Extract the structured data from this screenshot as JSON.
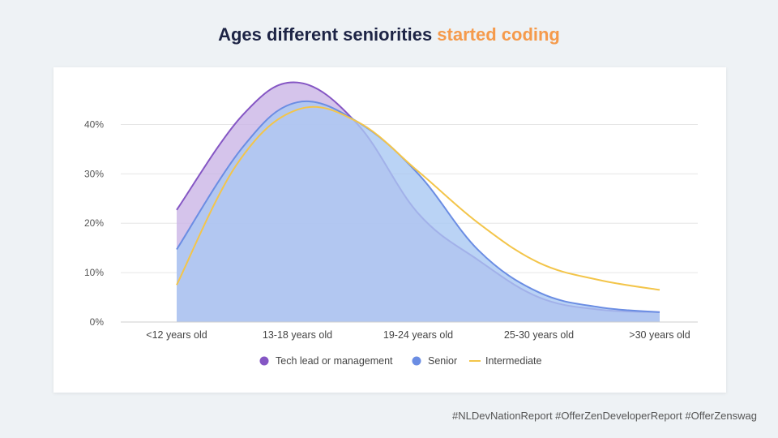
{
  "title": {
    "main": "Ages different seniorities ",
    "accent": "started coding"
  },
  "footer": "#NLDevNationReport #OfferZenDeveloperReport #OfferZenswag",
  "colors": {
    "background": "#eef2f5",
    "title": "#1d2445",
    "accent": "#f59a4b"
  },
  "chart_data": {
    "type": "area",
    "title": "",
    "xlabel": "",
    "ylabel": "",
    "categories": [
      "<12 years old",
      "13-18 years old",
      "19-24 years old",
      "25-30 years old",
      ">30 years old"
    ],
    "ylim": [
      0,
      45
    ],
    "yticks": [
      0,
      10,
      20,
      30,
      40
    ],
    "ytick_labels": [
      "0%",
      "10%",
      "20%",
      "30%",
      "40%"
    ],
    "grid": true,
    "legend_position": "bottom-center",
    "series": [
      {
        "name": "Tech lead or management",
        "kind": "area",
        "x": [
          0,
          0.55,
          1,
          1.5,
          2,
          2.5,
          3,
          3.5,
          4
        ],
        "values": [
          22.7,
          42,
          48.5,
          40,
          22,
          12.5,
          5,
          2.5,
          2
        ],
        "line_color": "#8556c4",
        "fill_color": "#cbb5e6",
        "legend_marker": "circle"
      },
      {
        "name": "Senior",
        "kind": "area",
        "x": [
          0,
          0.55,
          1,
          1.5,
          2,
          2.5,
          3,
          3.5,
          4
        ],
        "values": [
          14.7,
          35.5,
          44.5,
          40.5,
          30,
          14.5,
          6,
          3,
          2
        ],
        "line_color": "#6b8de3",
        "fill_color": "#a9c8f2",
        "legend_marker": "circle"
      },
      {
        "name": "Intermediate",
        "kind": "line",
        "x": [
          0,
          0.5,
          1,
          1.5,
          2,
          2.5,
          3,
          3.5,
          4
        ],
        "values": [
          7.5,
          32,
          43,
          40.5,
          30.5,
          20,
          12,
          8.5,
          6.5
        ],
        "line_color": "#f3c54a",
        "legend_marker": "line"
      }
    ]
  }
}
